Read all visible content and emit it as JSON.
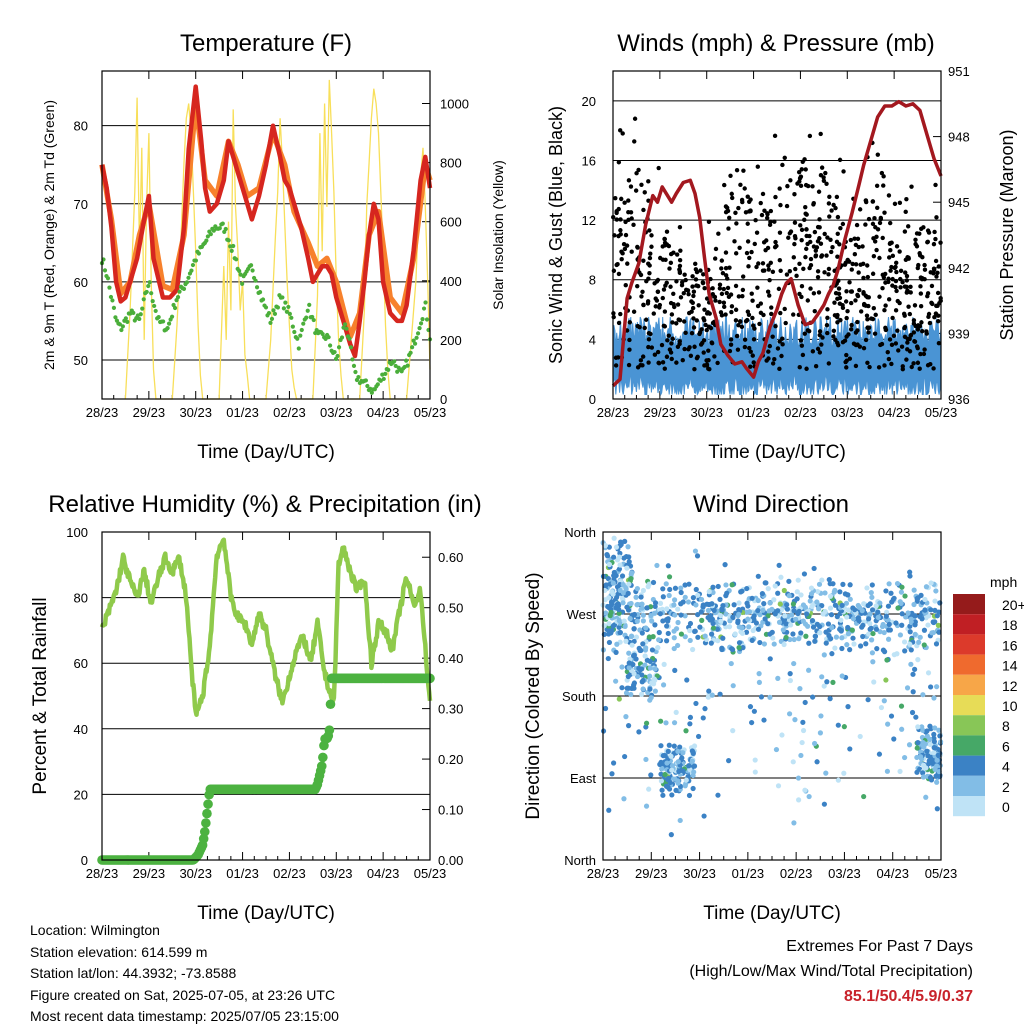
{
  "info": {
    "location": "Location: Wilmington",
    "elevation": "Station elevation: 614.599 m",
    "latlon": "Station lat/lon: 44.3932; -73.8588",
    "created": "Figure created on Sat, 2025-07-05, at 23:26 UTC",
    "recent": "Most recent data timestamp: 2025/07/05 23:15:00"
  },
  "extremes": {
    "title": "Extremes For Past 7 Days",
    "subtitle": "(High/Low/Max Wind/Total Precipitation)",
    "values": "85.1/50.4/5.9/0.37"
  },
  "chart_data": [
    {
      "type": "line",
      "title": "Temperature (F)",
      "xlabel": "Time (Day/UTC)",
      "ylabel": "2m & 9m T (Red, Orange) & 2m Td (Green)",
      "y2label": "Solar Insolation (Yellow)",
      "x_ticks": [
        "28/23",
        "29/23",
        "30/23",
        "01/23",
        "02/23",
        "03/23",
        "04/23",
        "05/23"
      ],
      "xlim": [
        0,
        7
      ],
      "ylim": [
        45,
        87
      ],
      "y_ticks": [
        50,
        60,
        70,
        80
      ],
      "y2lim": [
        0,
        1110
      ],
      "y2_ticks": [
        0,
        200,
        400,
        600,
        800,
        1000
      ],
      "colors": {
        "t2m": "#d6261f",
        "t9m": "#f7812c",
        "td": "#4aae3a",
        "solar": "#f8df5a"
      },
      "series": [
        {
          "name": "2m T",
          "axis": "left",
          "x": [
            0,
            0.1,
            0.2,
            0.3,
            0.4,
            0.5,
            0.6,
            0.75,
            0.9,
            1.0,
            1.1,
            1.3,
            1.45,
            1.6,
            1.75,
            1.85,
            2.0,
            2.12,
            2.2,
            2.3,
            2.45,
            2.6,
            2.7,
            2.75,
            2.9,
            3.0,
            3.1,
            3.2,
            3.35,
            3.5,
            3.65,
            3.8,
            3.9,
            4.0,
            4.1,
            4.25,
            4.4,
            4.5,
            4.6,
            4.7,
            4.8,
            4.9,
            5.0,
            5.15,
            5.3,
            5.4,
            5.5,
            5.6,
            5.7,
            5.8,
            5.9,
            6.0,
            6.15,
            6.3,
            6.4,
            6.5,
            6.65,
            6.8,
            6.9,
            7.0
          ],
          "y": [
            75,
            72,
            67,
            60,
            57.5,
            58,
            60,
            63,
            68,
            71,
            63,
            58,
            58,
            59,
            67,
            77,
            85,
            78,
            72,
            69,
            70,
            73,
            78,
            77,
            74,
            72,
            70,
            68,
            71,
            75,
            80,
            76,
            73,
            72,
            70,
            67,
            63,
            60,
            61,
            62,
            62,
            61,
            58,
            55,
            52,
            50.5,
            55,
            60,
            66,
            70,
            68,
            60,
            56,
            55,
            55,
            57,
            64,
            73,
            76,
            72
          ]
        },
        {
          "name": "9m T",
          "axis": "left",
          "x": [
            0,
            0.2,
            0.4,
            0.6,
            0.8,
            1.0,
            1.3,
            1.5,
            1.75,
            2.0,
            2.2,
            2.45,
            2.7,
            2.9,
            3.1,
            3.35,
            3.65,
            3.9,
            4.1,
            4.4,
            4.6,
            4.8,
            5.0,
            5.3,
            5.5,
            5.7,
            5.9,
            6.15,
            6.4,
            6.65,
            6.9,
            7.0
          ],
          "y": [
            75,
            68,
            58.5,
            60,
            66,
            70,
            59.5,
            59,
            66,
            83,
            73,
            71,
            78,
            75,
            71,
            72,
            79,
            75,
            69,
            65,
            62,
            63,
            60,
            53,
            56,
            66,
            69,
            58,
            56,
            63,
            75,
            73
          ]
        },
        {
          "name": "2m Td",
          "axis": "left",
          "x": [
            0,
            0.1,
            0.2,
            0.3,
            0.4,
            0.6,
            0.8,
            1.0,
            1.2,
            1.4,
            1.6,
            1.8,
            2.0,
            2.2,
            2.4,
            2.6,
            2.8,
            3.0,
            3.2,
            3.4,
            3.6,
            3.8,
            4.0,
            4.2,
            4.4,
            4.6,
            4.8,
            5.0,
            5.2,
            5.4,
            5.6,
            5.8,
            6.0,
            6.2,
            6.4,
            6.6,
            6.8,
            6.9,
            7.0
          ],
          "y": [
            63,
            61,
            58,
            55,
            54,
            56,
            55,
            60,
            55,
            54,
            58,
            60,
            63,
            65,
            67,
            67,
            64,
            60,
            62,
            58,
            55,
            58,
            56,
            52,
            57,
            53,
            53,
            50,
            55,
            48,
            47,
            46,
            48,
            50,
            48,
            51,
            55,
            57,
            53
          ]
        },
        {
          "name": "Solar Insolation",
          "axis": "right",
          "x": [
            0.5,
            0.6,
            0.7,
            0.75,
            0.8,
            0.85,
            0.9,
            0.95,
            1.0,
            1.05,
            1.1,
            1.15,
            1.5,
            1.6,
            1.7,
            1.75,
            1.8,
            1.85,
            1.9,
            1.95,
            2.0,
            2.05,
            2.1,
            2.15,
            2.5,
            2.6,
            2.65,
            2.7,
            2.75,
            2.8,
            2.85,
            2.9,
            2.95,
            3.0,
            3.05,
            3.1,
            3.15,
            3.5,
            3.6,
            3.7,
            3.75,
            3.8,
            3.85,
            3.9,
            3.95,
            4.0,
            4.05,
            4.1,
            4.15,
            4.5,
            4.6,
            4.65,
            4.7,
            4.75,
            4.8,
            4.85,
            4.9,
            4.95,
            5.0,
            5.05,
            5.1,
            5.15,
            5.5,
            5.6,
            5.65,
            5.7,
            5.75,
            5.8,
            5.85,
            5.9,
            5.95,
            6.0,
            6.05,
            6.1,
            6.15,
            6.5,
            6.6,
            6.7,
            6.75,
            6.8,
            6.85,
            6.9,
            6.95,
            7.0
          ],
          "y": [
            0,
            300,
            700,
            1020,
            500,
            850,
            200,
            650,
            900,
            400,
            100,
            0,
            0,
            250,
            600,
            800,
            950,
            1000,
            900,
            700,
            500,
            250,
            80,
            0,
            0,
            450,
            200,
            600,
            300,
            980,
            650,
            500,
            300,
            400,
            150,
            80,
            0,
            0,
            200,
            550,
            700,
            950,
            800,
            600,
            400,
            250,
            100,
            40,
            0,
            0,
            350,
            900,
            500,
            1000,
            650,
            1080,
            900,
            700,
            400,
            200,
            80,
            0,
            0,
            300,
            650,
            800,
            950,
            1050,
            1000,
            900,
            700,
            500,
            250,
            100,
            0,
            0,
            200,
            400,
            600,
            750,
            850,
            650,
            400,
            100
          ]
        }
      ]
    },
    {
      "type": "scatter",
      "title": "Winds (mph) & Pressure (mb)",
      "xlabel": "Time (Day/UTC)",
      "ylabel": "Sonic Wind & Gust (Blue, Black)",
      "y2label": "Station Pressure (Maroon)",
      "x_ticks": [
        "28/23",
        "29/23",
        "30/23",
        "01/23",
        "02/23",
        "03/23",
        "04/23",
        "05/23"
      ],
      "xlim": [
        0,
        7
      ],
      "ylim": [
        0,
        22
      ],
      "y_ticks": [
        0,
        4,
        8,
        12,
        16,
        20
      ],
      "y2lim": [
        936,
        951
      ],
      "y2_ticks": [
        936,
        939,
        942,
        945,
        948,
        951
      ],
      "colors": {
        "wind": "#4a94d4",
        "gust": "#000000",
        "pressure": "#a3181f"
      },
      "series": [
        {
          "name": "Pressure",
          "axis": "right",
          "x": [
            0,
            0.15,
            0.3,
            0.4,
            0.55,
            0.7,
            0.85,
            0.95,
            1.05,
            1.25,
            1.35,
            1.5,
            1.65,
            1.75,
            1.85,
            1.95,
            2.05,
            2.2,
            2.3,
            2.45,
            2.6,
            2.75,
            2.85,
            3.0,
            3.1,
            3.2,
            3.35,
            3.5,
            3.6,
            3.7,
            3.8,
            3.95,
            4.1,
            4.25,
            4.35,
            4.5,
            4.6,
            4.7,
            4.8,
            4.95,
            5.1,
            5.25,
            5.35,
            5.5,
            5.65,
            5.8,
            5.95,
            6.1,
            6.25,
            6.4,
            6.55,
            6.7,
            6.85,
            7.0
          ],
          "y": [
            936.6,
            936.9,
            940.6,
            941.3,
            942.2,
            944.0,
            945.3,
            945.0,
            945.7,
            945.0,
            945.4,
            945.9,
            946.0,
            945.4,
            944.3,
            942.5,
            940.8,
            939.7,
            938.5,
            938.0,
            937.6,
            937.7,
            937.4,
            937.0,
            937.7,
            938.1,
            939.3,
            940.1,
            940.8,
            941.3,
            941.5,
            940.3,
            939.4,
            939.5,
            939.8,
            940.3,
            940.8,
            941.2,
            941.9,
            943.3,
            944.5,
            945.8,
            946.7,
            947.8,
            948.9,
            949.4,
            949.4,
            949.6,
            949.4,
            949.5,
            949.2,
            948.1,
            947.0,
            946.2
          ]
        }
      ]
    },
    {
      "type": "line",
      "title": "Relative Humidity (%) & Precipitation (in)",
      "xlabel": "Time (Day/UTC)",
      "ylabel": "Percent & Total Rainfall",
      "x_ticks": [
        "28/23",
        "29/23",
        "30/23",
        "01/23",
        "02/23",
        "03/23",
        "04/23",
        "05/23"
      ],
      "xlim": [
        0,
        7
      ],
      "ylim": [
        0,
        100
      ],
      "y_ticks": [
        0,
        20,
        40,
        60,
        80,
        100
      ],
      "y2lim": [
        0,
        0.65
      ],
      "y2_ticks": [
        "0.00",
        "0.10",
        "0.20",
        "0.30",
        "0.40",
        "0.50",
        "0.60"
      ],
      "colors": {
        "rh": "#8fca4b",
        "precip": "#4cb240"
      },
      "series": [
        {
          "name": "RH",
          "axis": "left",
          "x": [
            0,
            0.1,
            0.2,
            0.3,
            0.45,
            0.6,
            0.75,
            0.9,
            1.05,
            1.2,
            1.35,
            1.5,
            1.65,
            1.8,
            1.9,
            2.0,
            2.15,
            2.3,
            2.45,
            2.6,
            2.75,
            2.9,
            3.05,
            3.2,
            3.35,
            3.5,
            3.7,
            3.85,
            4.0,
            4.15,
            4.3,
            4.45,
            4.6,
            4.75,
            4.85,
            4.95,
            5.05,
            5.15,
            5.3,
            5.45,
            5.6,
            5.75,
            5.9,
            6.05,
            6.2,
            6.35,
            6.5,
            6.65,
            6.8,
            6.95,
            7.0
          ],
          "y": [
            70,
            74,
            78,
            82,
            92,
            85,
            80,
            88,
            78,
            86,
            92,
            88,
            92,
            80,
            60,
            44,
            50,
            65,
            93,
            98,
            80,
            74,
            72,
            66,
            75,
            70,
            56,
            48,
            56,
            64,
            68,
            60,
            72,
            57,
            52,
            48,
            90,
            95,
            88,
            82,
            86,
            60,
            72,
            70,
            64,
            76,
            86,
            78,
            82,
            56,
            48
          ]
        },
        {
          "name": "Precipitation",
          "axis": "right",
          "x": [
            0,
            1.7,
            1.95,
            2.05,
            2.15,
            2.2,
            2.25,
            2.3,
            2.5,
            3.0,
            3.5,
            4.0,
            4.55,
            4.6,
            4.7,
            4.75,
            4.8,
            4.85,
            4.9,
            5.0,
            5.5,
            6.0,
            6.5,
            7.0
          ],
          "y": [
            0.0,
            0.0,
            0.0,
            0.01,
            0.03,
            0.06,
            0.1,
            0.14,
            0.14,
            0.14,
            0.14,
            0.14,
            0.14,
            0.15,
            0.19,
            0.24,
            0.24,
            0.25,
            0.36,
            0.36,
            0.36,
            0.36,
            0.36,
            0.36
          ]
        }
      ]
    },
    {
      "type": "scatter",
      "title": "Wind Direction",
      "xlabel": "Time (Day/UTC)",
      "ylabel": "Direction (Colored By Speed)",
      "x_ticks": [
        "28/23",
        "29/23",
        "30/23",
        "01/23",
        "02/23",
        "03/23",
        "04/23",
        "05/23"
      ],
      "xlim": [
        0,
        7
      ],
      "y_ticks": [
        "North",
        "East",
        "South",
        "West",
        "North"
      ],
      "legend": {
        "title": "mph",
        "labels": [
          "20+",
          "18",
          "16",
          "14",
          "12",
          "10",
          "8",
          "6",
          "4",
          "2",
          "0"
        ],
        "colors": [
          "#951b1b",
          "#c01f24",
          "#dc3a2b",
          "#ef6a2e",
          "#f7a648",
          "#e7dc57",
          "#88c657",
          "#46a867",
          "#3b82c5",
          "#82bde6",
          "#bfe3f6"
        ]
      }
    }
  ]
}
